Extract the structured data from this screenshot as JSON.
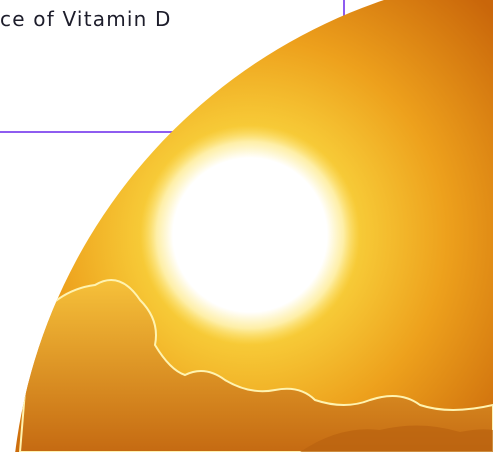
{
  "card": {
    "text": "ce of Vitamin D"
  }
}
